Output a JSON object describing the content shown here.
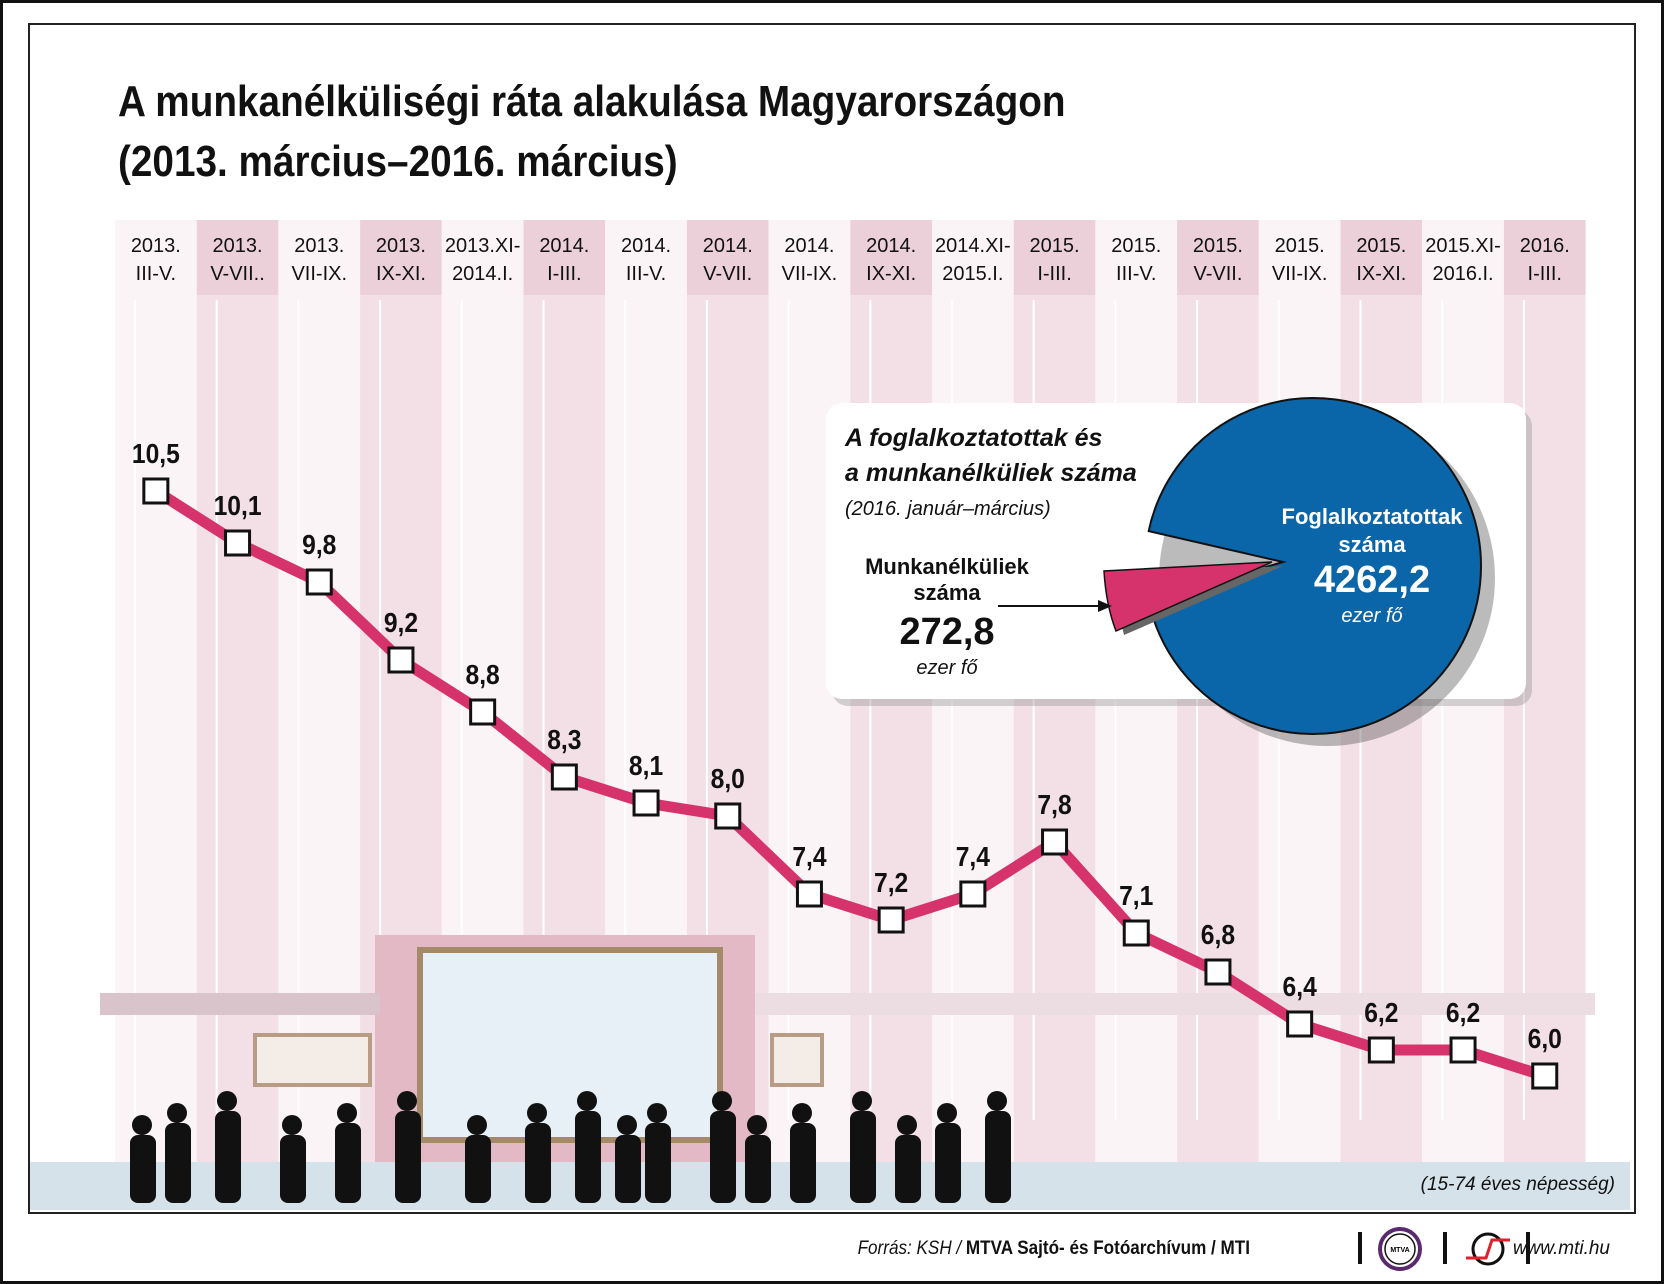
{
  "title_line1": "A munkanélküliségi ráta alakulása Magyarországon",
  "title_line2": "(2013. március–2016. március)",
  "chart_data": {
    "type": "line",
    "categories": [
      [
        "2013.",
        "III-V."
      ],
      [
        "2013.",
        "V-VII.."
      ],
      [
        "2013.",
        "VII-IX."
      ],
      [
        "2013.",
        "IX-XI."
      ],
      [
        "2013.XI-",
        "2014.I."
      ],
      [
        "2014.",
        "I-III."
      ],
      [
        "2014.",
        "III-V."
      ],
      [
        "2014.",
        "V-VII."
      ],
      [
        "2014.",
        "VII-IX."
      ],
      [
        "2014.",
        "IX-XI."
      ],
      [
        "2014.XI-",
        "2015.I."
      ],
      [
        "2015.",
        "I-III."
      ],
      [
        "2015.",
        "III-V."
      ],
      [
        "2015.",
        "V-VII."
      ],
      [
        "2015.",
        "VII-IX."
      ],
      [
        "2015.",
        "IX-XI."
      ],
      [
        "2015.XI-",
        "2016.I."
      ],
      [
        "2016.",
        "I-III."
      ]
    ],
    "values": [
      10.5,
      10.1,
      9.8,
      9.2,
      8.8,
      8.3,
      8.1,
      8.0,
      7.4,
      7.2,
      7.4,
      7.8,
      7.1,
      6.8,
      6.4,
      6.2,
      6.2,
      6.0
    ],
    "value_labels": [
      "10,5",
      "10,1",
      "9,8",
      "9,2",
      "8,8",
      "8,3",
      "8,1",
      "8,0",
      "7,4",
      "7,2",
      "7,4",
      "7,8",
      "7,1",
      "6,8",
      "6,4",
      "6,2",
      "6,2",
      "6,0"
    ],
    "line_color": "#d6336c",
    "note": "(15-74 éves népesség)",
    "inset_pie": {
      "type": "pie",
      "title_line1": "A foglalkoztatottak és",
      "title_line2": "a munkanélküliek száma",
      "subtitle": "(2016. január–március)",
      "slices": [
        {
          "label_line1": "Foglalkoztatottak",
          "label_line2": "száma",
          "value": 4262.2,
          "value_label": "4262,2",
          "unit": "ezer fő",
          "color": "#0a66a8"
        },
        {
          "label_line1": "Munkanélküliek",
          "label_line2": "száma",
          "value": 272.8,
          "value_label": "272,8",
          "unit": "ezer fő",
          "color": "#d6336c"
        }
      ]
    }
  },
  "footer": {
    "source_prefix": "Forrás: KSH / ",
    "source_bold": "MTVA Sajtó- és Fotóarchívum / MTI",
    "logo_mtva": "MTVA",
    "website": "www.mti.hu"
  }
}
